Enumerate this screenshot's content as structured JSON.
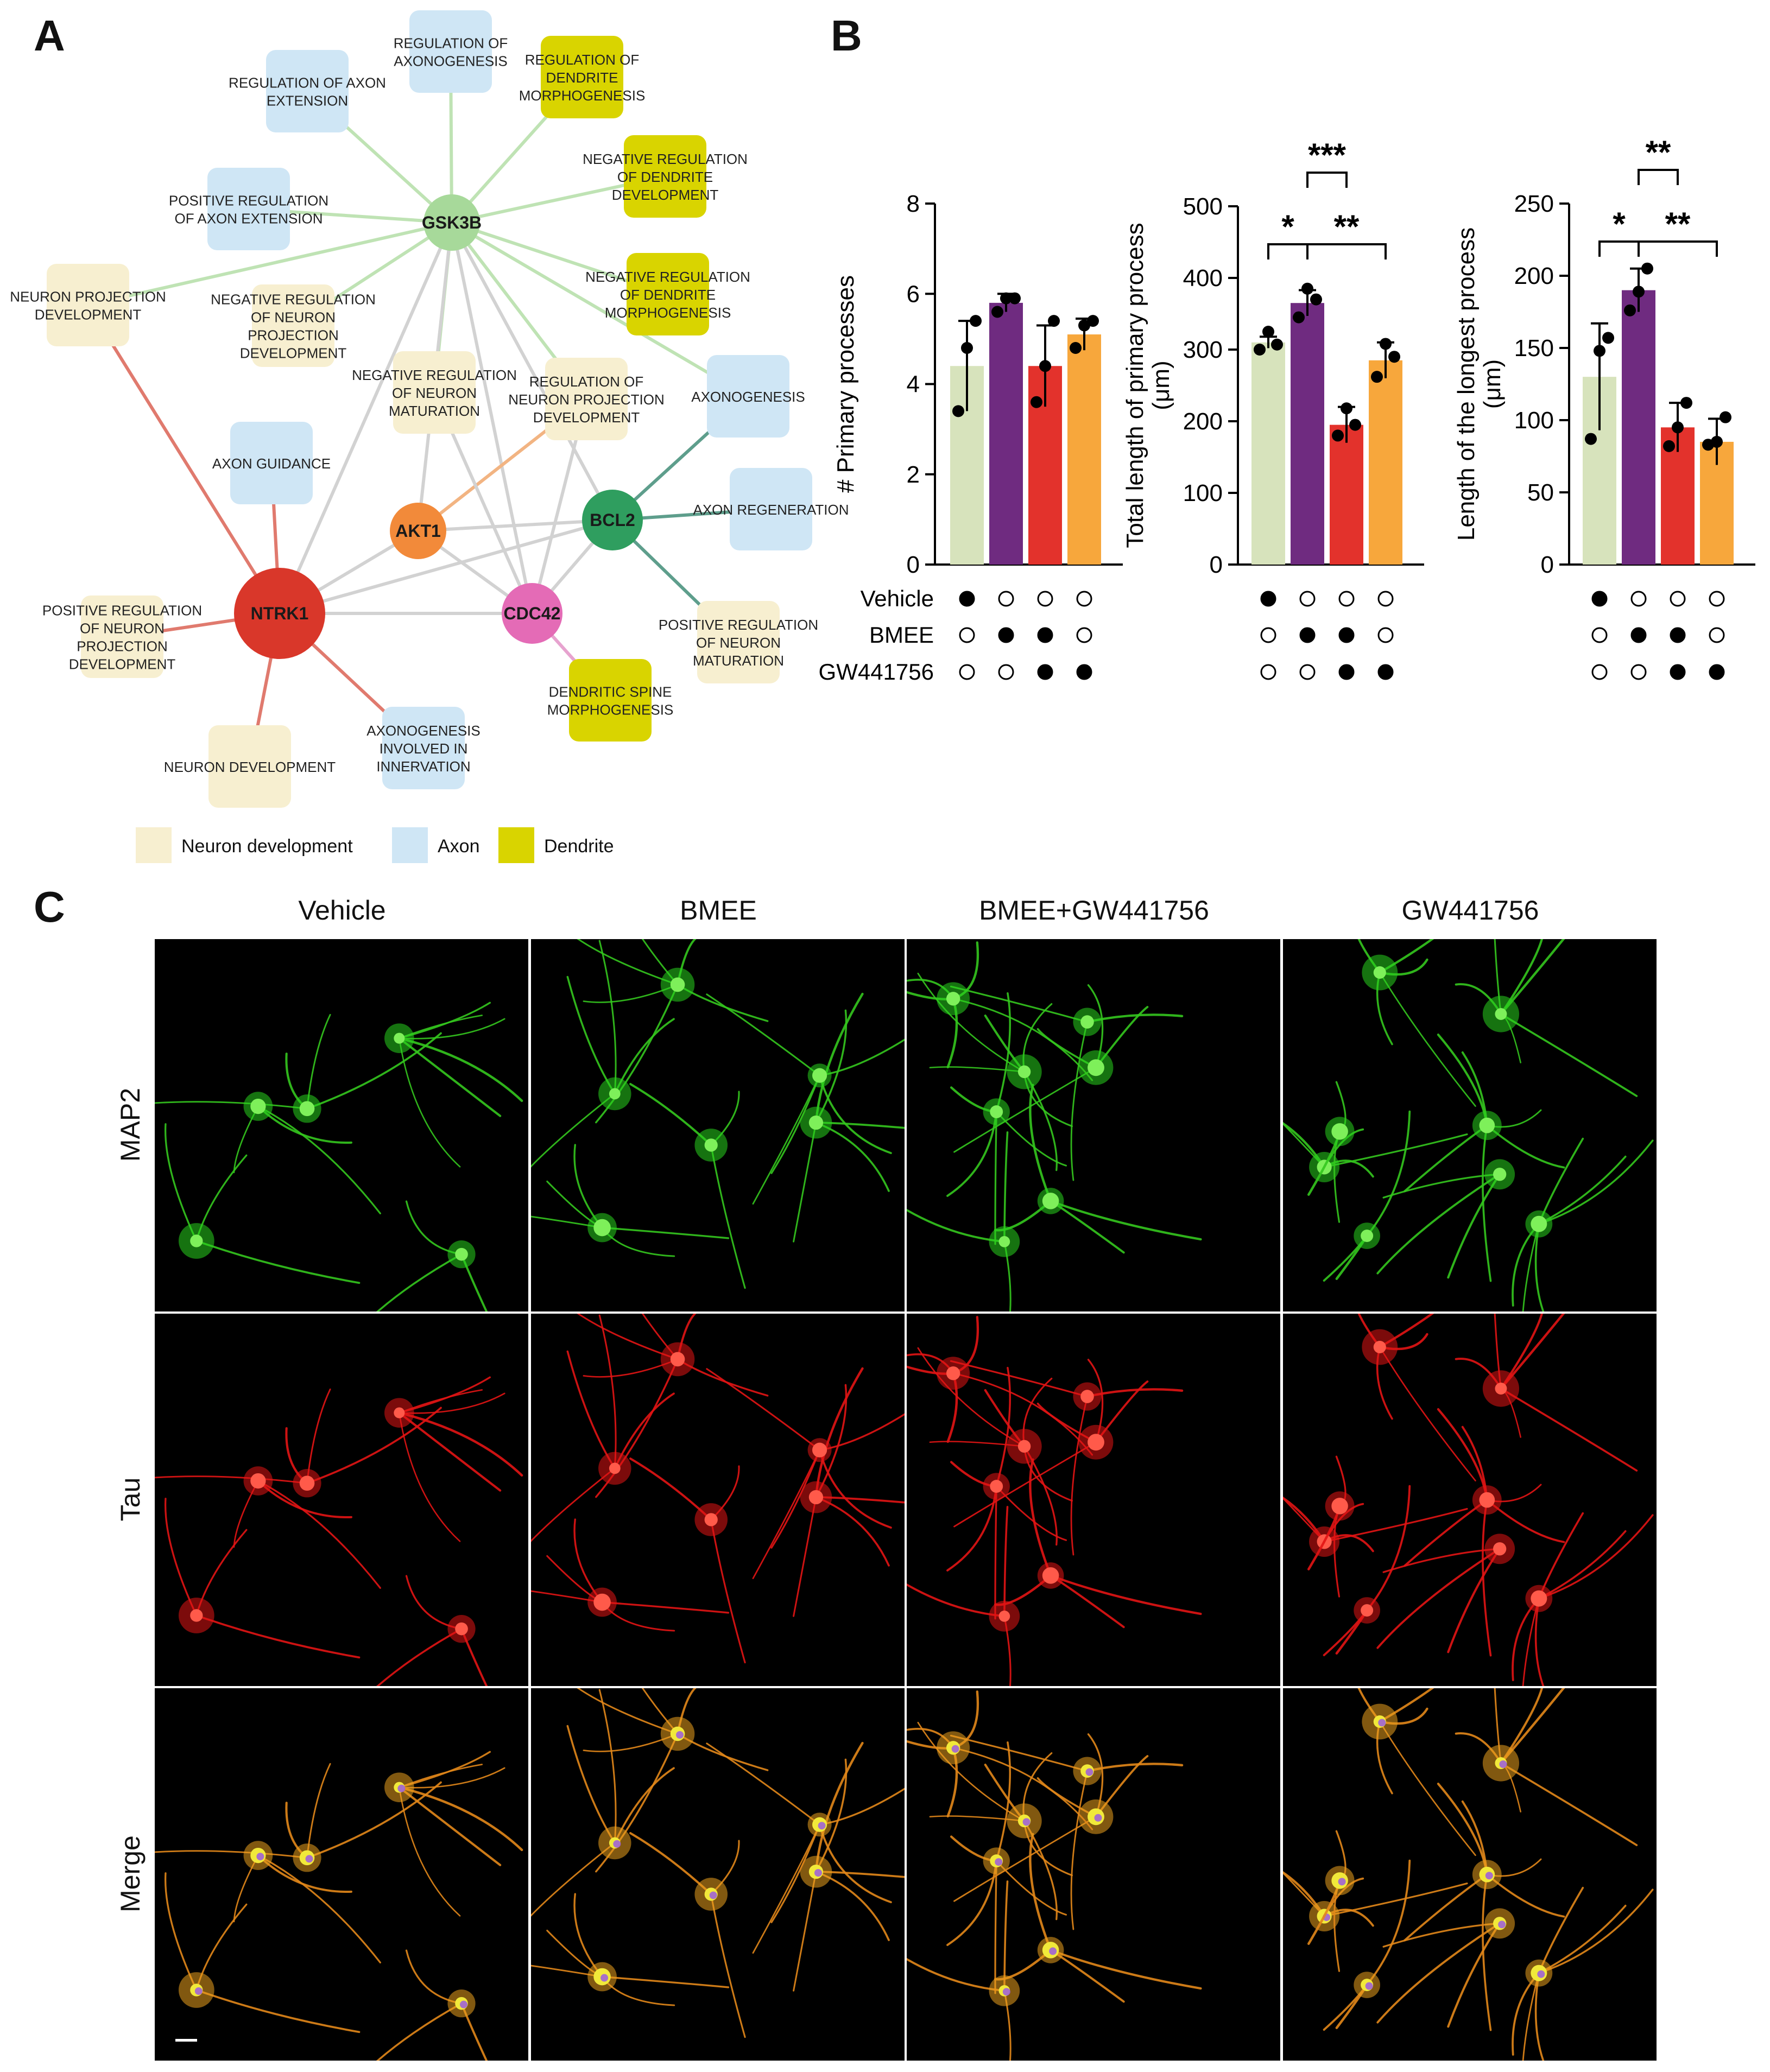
{
  "panels": {
    "a": "A",
    "b": "B",
    "c": "C"
  },
  "network": {
    "nodes": [
      {
        "id": "gsk3b",
        "label": "GSK3B",
        "color": "#a7d99a"
      },
      {
        "id": "akt1",
        "label": "AKT1",
        "color": "#f28a3a"
      },
      {
        "id": "bcl2",
        "label": "BCL2",
        "color": "#2f9e5f"
      },
      {
        "id": "cdc42",
        "label": "CDC42",
        "color": "#e46bb6"
      },
      {
        "id": "ntrk1",
        "label": "NTRK1",
        "color": "#d9372a"
      }
    ],
    "terms": [
      {
        "id": "t_reg_axonogenesis",
        "lines": [
          "REGULATION OF",
          "AXONOGENESIS"
        ],
        "cat": "axon"
      },
      {
        "id": "t_reg_dend_morph",
        "lines": [
          "REGULATION OF",
          "DENDRITE",
          "MORPHOGENESIS"
        ],
        "cat": "dendrite"
      },
      {
        "id": "t_reg_axon_ext",
        "lines": [
          "REGULATION OF AXON",
          "EXTENSION"
        ],
        "cat": "axon"
      },
      {
        "id": "t_neg_reg_dend_dev",
        "lines": [
          "NEGATIVE REGULATION",
          "OF DENDRITE",
          "DEVELOPMENT"
        ],
        "cat": "dendrite"
      },
      {
        "id": "t_pos_reg_axon_ext",
        "lines": [
          "POSITIVE REGULATION",
          "OF AXON EXTENSION"
        ],
        "cat": "axon"
      },
      {
        "id": "t_neuron_proj_dev",
        "lines": [
          "NEURON PROJECTION",
          "DEVELOPMENT"
        ],
        "cat": "neuron"
      },
      {
        "id": "t_neg_reg_neuron_proj",
        "lines": [
          "NEGATIVE REGULATION",
          "OF NEURON",
          "PROJECTION",
          "DEVELOPMENT"
        ],
        "cat": "neuron"
      },
      {
        "id": "t_neg_reg_dend_morph",
        "lines": [
          "NEGATIVE REGULATION",
          "OF DENDRITE",
          "MORPHOGENESIS"
        ],
        "cat": "dendrite"
      },
      {
        "id": "t_neg_reg_neuron_mat",
        "lines": [
          "NEGATIVE REGULATION",
          "OF NEURON",
          "MATURATION"
        ],
        "cat": "neuron"
      },
      {
        "id": "t_reg_neuron_proj",
        "lines": [
          "REGULATION OF",
          "NEURON PROJECTION",
          "DEVELOPMENT"
        ],
        "cat": "neuron"
      },
      {
        "id": "t_axonogenesis",
        "lines": [
          "AXONOGENESIS"
        ],
        "cat": "axon"
      },
      {
        "id": "t_axon_guidance",
        "lines": [
          "AXON GUIDANCE"
        ],
        "cat": "axon"
      },
      {
        "id": "t_axon_regen",
        "lines": [
          "AXON REGENERATION"
        ],
        "cat": "axon"
      },
      {
        "id": "t_pos_reg_neuron_proj",
        "lines": [
          "POSITIVE REGULATION",
          "OF NEURON",
          "PROJECTION",
          "DEVELOPMENT"
        ],
        "cat": "neuron"
      },
      {
        "id": "t_pos_reg_neuron_mat",
        "lines": [
          "POSITIVE REGULATION",
          "OF NEURON",
          "MATURATION"
        ],
        "cat": "neuron"
      },
      {
        "id": "t_dendritic_spine",
        "lines": [
          "DENDRITIC SPINE",
          "MORPHOGENESIS"
        ],
        "cat": "dendrite"
      },
      {
        "id": "t_neuron_dev",
        "lines": [
          "NEURON DEVELOPMENT"
        ],
        "cat": "neuron"
      },
      {
        "id": "t_axonogenesis_innerv",
        "lines": [
          "AXONOGENESIS",
          "INVOLVED IN",
          "INNERVATION"
        ],
        "cat": "axon"
      }
    ],
    "category_colors": {
      "neuron": "#f7efd0",
      "axon": "#cfe6f5",
      "dendrite": "#d9d400"
    },
    "edge_colors": {
      "gsk3b": "#bfe3b4",
      "ntrk1": "#e07a6e",
      "bcl2": "#5e9e8c",
      "akt1": "#f2b482",
      "cdc42": "#e7a3cf",
      "gene": "#d2d2d2"
    },
    "legend": [
      {
        "label": "Neuron development",
        "cat": "neuron"
      },
      {
        "label": "Axon",
        "cat": "axon"
      },
      {
        "label": "Dendrite",
        "cat": "dendrite"
      }
    ]
  },
  "chart_data": [
    {
      "type": "bar",
      "ylabel": "# Primary processes",
      "ylim": [
        0,
        8
      ],
      "yticks": [
        0,
        2,
        4,
        6,
        8
      ],
      "categories": [
        "Vehicle",
        "BMEE",
        "BMEE+GW441756",
        "GW441756"
      ],
      "values": [
        4.4,
        5.8,
        4.4,
        5.1
      ],
      "errors": [
        1.0,
        0.2,
        0.9,
        0.35
      ],
      "points": [
        [
          3.4,
          4.8,
          5.4
        ],
        [
          5.6,
          5.9,
          5.9
        ],
        [
          3.6,
          4.4,
          5.4
        ],
        [
          4.8,
          5.3,
          5.4
        ]
      ],
      "colors": [
        "#d7e3bc",
        "#6f2b80",
        "#e3322c",
        "#f7a73c"
      ],
      "significance": []
    },
    {
      "type": "bar",
      "ylabel": "Total length of primary process",
      "ylabel2": "(μm)",
      "ylim": [
        0,
        500
      ],
      "yticks": [
        0,
        100,
        200,
        300,
        400,
        500
      ],
      "categories": [
        "Vehicle",
        "BMEE",
        "BMEE+GW441756",
        "GW441756"
      ],
      "values": [
        310,
        365,
        195,
        285
      ],
      "errors": [
        8,
        18,
        25,
        25
      ],
      "points": [
        [
          300,
          325,
          307
        ],
        [
          345,
          385,
          370
        ],
        [
          180,
          218,
          195
        ],
        [
          262,
          308,
          290
        ]
      ],
      "colors": [
        "#d7e3bc",
        "#6f2b80",
        "#e3322c",
        "#f7a73c"
      ],
      "significance": [
        {
          "from": 0,
          "to": 1,
          "label": "*",
          "level": 0
        },
        {
          "from": 1,
          "to": 3,
          "label": "**",
          "level": 0
        },
        {
          "from": 1,
          "to": 2,
          "label": "***",
          "level": 1
        }
      ]
    },
    {
      "type": "bar",
      "ylabel": "Length of the longest process",
      "ylabel2": "(μm)",
      "ylim": [
        0,
        250
      ],
      "yticks": [
        0,
        50,
        100,
        150,
        200,
        250
      ],
      "categories": [
        "Vehicle",
        "BMEE",
        "BMEE+GW441756",
        "GW441756"
      ],
      "values": [
        130,
        190,
        95,
        85
      ],
      "errors": [
        37,
        15,
        17,
        16
      ],
      "points": [
        [
          87,
          148,
          157
        ],
        [
          176,
          189,
          205
        ],
        [
          82,
          95,
          112
        ],
        [
          83,
          85,
          102
        ]
      ],
      "colors": [
        "#d7e3bc",
        "#6f2b80",
        "#e3322c",
        "#f7a73c"
      ],
      "significance": [
        {
          "from": 0,
          "to": 1,
          "label": "*",
          "level": 0
        },
        {
          "from": 1,
          "to": 3,
          "label": "**",
          "level": 0
        },
        {
          "from": 1,
          "to": 2,
          "label": "**",
          "level": 1
        }
      ]
    }
  ],
  "treatment_matrix": {
    "rows": [
      {
        "label": "Vehicle",
        "values": [
          1,
          0,
          0,
          0
        ]
      },
      {
        "label": "BMEE",
        "values": [
          0,
          1,
          1,
          0
        ]
      },
      {
        "label": "GW441756",
        "values": [
          0,
          0,
          1,
          1
        ]
      }
    ]
  },
  "micrographs": {
    "columns": [
      "Vehicle",
      "BMEE",
      "BMEE+GW441756",
      "GW441756"
    ],
    "rows": [
      {
        "label": "MAP2",
        "stain": "map2"
      },
      {
        "label": "Tau",
        "stain": "tau"
      },
      {
        "label": "Merge",
        "stain": "merge"
      }
    ]
  }
}
